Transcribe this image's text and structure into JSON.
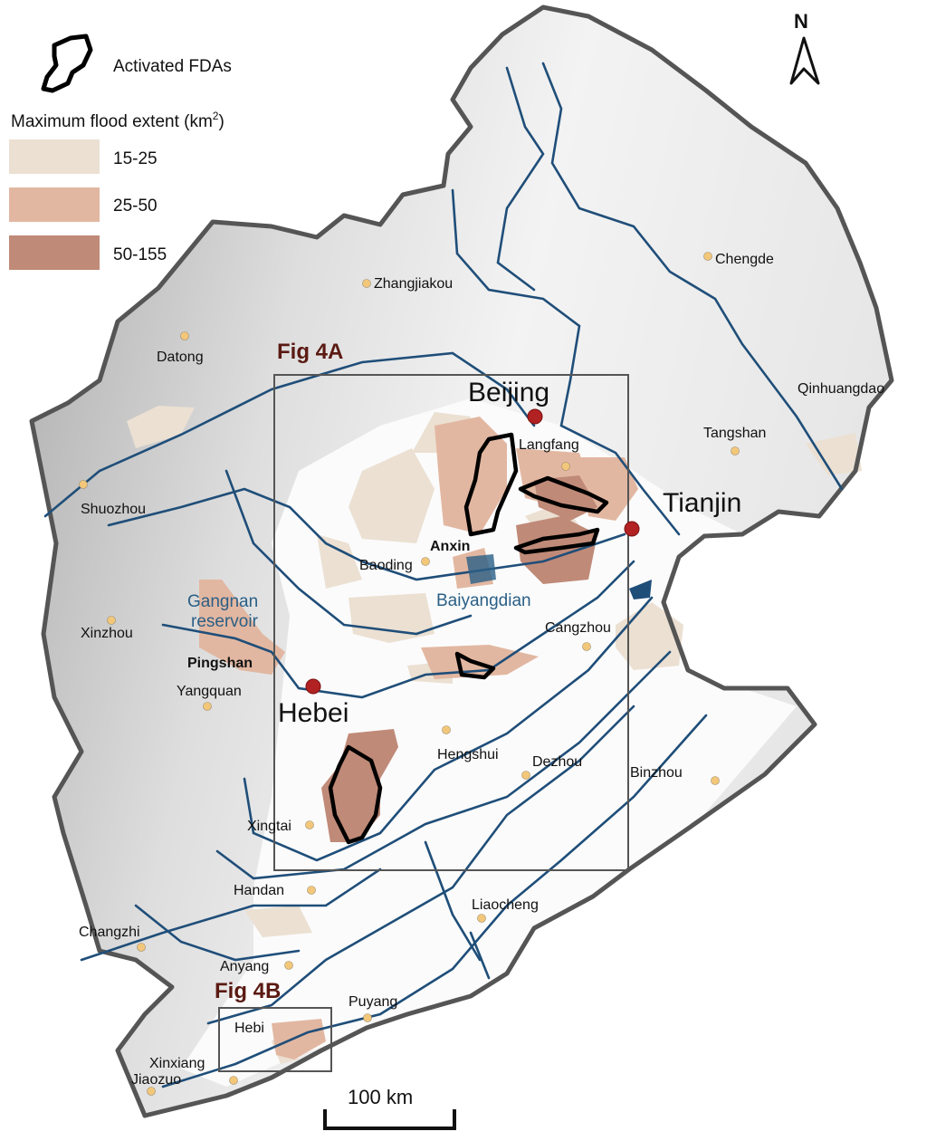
{
  "legend": {
    "fda_label": "Activated FDAs",
    "flood_title": "Maximum flood extent (km",
    "flood_title_sup": "2",
    "flood_title_close": ")",
    "classes": [
      {
        "label": "15-25",
        "color": "#ebe0d2"
      },
      {
        "label": "25-50",
        "color": "#e2b7a1"
      },
      {
        "label": "50-155",
        "color": "#c08a78"
      }
    ]
  },
  "north": "N",
  "scale_bar": "100 km",
  "fig_labels": {
    "a": "Fig 4A",
    "b": "Fig 4B"
  },
  "major_cities": {
    "beijing": "Beijing",
    "tianjin": "Tianjin",
    "hebei": "Hebei"
  },
  "cities": {
    "zhangjiakou": "Zhangjiakou",
    "chengde": "Chengde",
    "datong": "Datong",
    "qinhuangdao": "Qinhuangdao",
    "tangshan": "Tangshan",
    "langfang": "Langfang",
    "shuozhou": "Shuozhou",
    "baoding": "Baoding",
    "anxin": "Anxin",
    "xinzhou": "Xinzhou",
    "cangzhou": "Cangzhou",
    "pingshan": "Pingshan",
    "yangquan": "Yangquan",
    "hengshui": "Hengshui",
    "dezhou": "Dezhou",
    "binzhou": "Binzhou",
    "xingtai": "Xingtai",
    "handan": "Handan",
    "liaocheng": "Liaocheng",
    "changzhi": "Changzhi",
    "anyang": "Anyang",
    "puyang": "Puyang",
    "hebi": "Hebi",
    "xinxiang": "Xinxiang",
    "jiaozuo": "Jiaozuo"
  },
  "water_labels": {
    "gangnan_1": "Gangnan",
    "gangnan_2": "reservoir",
    "baiyangdian": "Baiyangdian"
  },
  "colors": {
    "boundary": "#555555",
    "river": "#1f4e79",
    "city_dot": "#f3c77a",
    "major_dot": "#b22222",
    "fda": "#000000",
    "fig_label": "#5a1a12",
    "water_text": "#2a5f86"
  }
}
